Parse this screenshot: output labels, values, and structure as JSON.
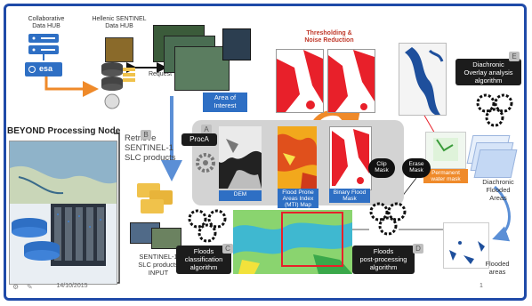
{
  "nodes": {
    "collab_hub": "Collaborative\nData HUB",
    "esa_logo": "esa",
    "hellenic_hub": "Hellenic SENTINEL\nData HUB",
    "request": "Request",
    "area_of_interest": "Area of\nInterest",
    "thresholding": "Thresholding &\nNoise Reduction",
    "processing_node": "BEYOND Processing Node",
    "retrieve": "Retrieve\nSENTINEL-1\nSLC products",
    "proc_a": "ProcA",
    "dem": "DEM",
    "mti_map": "Flood Prone\nAreas Index\n(MTI) Map",
    "binary_mask": "Binary Flood\nMask",
    "clip_mask": "Clip\nMask",
    "erase_mask": "Erase\nMask",
    "permanent_water": "Permanent\nwater mask",
    "diachronic_algo": "Diachronic\nOverlay analysis\nalgorithm",
    "diachronic_areas": "Diachronic\nFlooded\nAreas",
    "sentinel_input": "SENTINEL-1\nSLC products\nINPUT",
    "floods_classification": "Floods\nclassification\nalgorithm",
    "floods_post": "Floods\npost-processing\nalgorithm",
    "flooded_areas": "Flooded\nareas",
    "footer_date": "14/10/2015",
    "page_number": "1"
  },
  "badges": {
    "a": "A",
    "b": "B",
    "c": "C",
    "d": "D",
    "e": "E"
  },
  "colors": {
    "frame_border": "#1f4aa8",
    "arrow_orange": "#ef8a2a",
    "arrow_blue": "#5b8fd6",
    "box_blue": "#2e6fc4",
    "box_dark": "#1c1c1c",
    "mask_red": "#e8202a",
    "water_blue": "#1e4f9c"
  }
}
